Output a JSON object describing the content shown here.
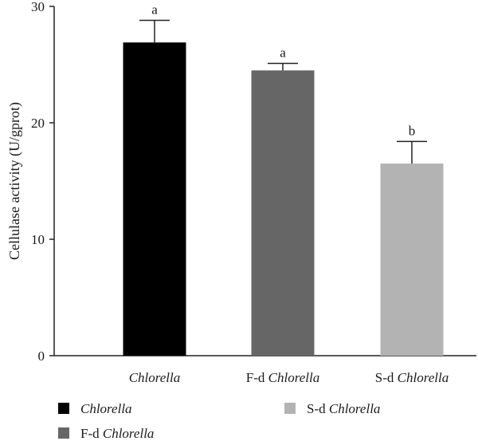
{
  "chart_data": {
    "type": "bar",
    "ylabel": "Cellulase activity (U/gprot)",
    "ylim": [
      0,
      30
    ],
    "yticks": [
      0,
      10,
      20,
      30
    ],
    "categories": [
      {
        "prefix": "",
        "name": "Chlorella"
      },
      {
        "prefix": "F-d ",
        "name": "Chlorella"
      },
      {
        "prefix": "S-d ",
        "name": "Chlorella"
      }
    ],
    "values": [
      26.9,
      24.5,
      16.5
    ],
    "errors": [
      1.9,
      0.6,
      1.9
    ],
    "significance": [
      "a",
      "a",
      "b"
    ],
    "colors": [
      "#000000",
      "#666666",
      "#b3b3b3"
    ],
    "legend": [
      {
        "prefix": "",
        "name": "Chlorella",
        "color": "#000000"
      },
      {
        "prefix": "F-d ",
        "name": "Chlorella",
        "color": "#666666"
      },
      {
        "prefix": "S-d ",
        "name": "Chlorella",
        "color": "#b3b3b3"
      }
    ],
    "grid": false,
    "legend_position": "bottom"
  }
}
